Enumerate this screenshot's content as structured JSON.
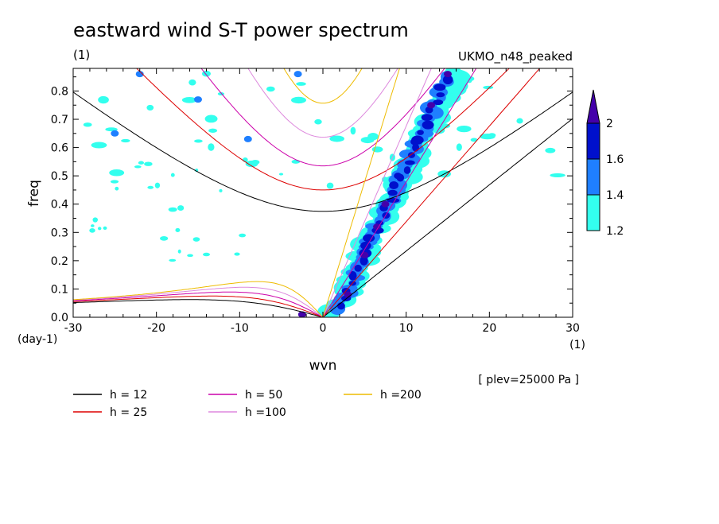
{
  "chart_data": {
    "type": "contour",
    "title": "eastward wind S-T power spectrum",
    "top_left_unit": "(1)",
    "dataset": "UKMO_n48_peaked",
    "xlabel": "wvn",
    "x_unit": "(1)",
    "ylabel": "freq",
    "y_unit": "(day-1)",
    "xlim": [
      -30,
      30
    ],
    "ylim": [
      0,
      0.88
    ],
    "xticks": [
      -30,
      -20,
      -10,
      0,
      10,
      20,
      30
    ],
    "yticks": [
      0.0,
      0.1,
      0.2,
      0.3,
      0.4,
      0.5,
      0.6,
      0.7,
      0.8
    ],
    "ytick_labels": [
      "0.0",
      "0.1",
      "0.2",
      "0.3",
      "0.4",
      "0.5",
      "0.6",
      "0.7",
      "0.8"
    ],
    "annotation": "[ plev=25000 Pa ]",
    "colorbar": {
      "levels": [
        "1.2",
        "1.4",
        "1.6",
        "2"
      ],
      "colors": [
        "#33ffee",
        "#1f7fff",
        "#0010cc",
        "#4400aa"
      ],
      "extend": "max"
    },
    "dispersion_curves": [
      {
        "label": "h = 12",
        "h": 12,
        "color": "#000000"
      },
      {
        "label": "h = 25",
        "h": 25,
        "color": "#dd0000"
      },
      {
        "label": "h = 50",
        "h": 50,
        "color": "#cc00aa"
      },
      {
        "label": "h =100",
        "h": 100,
        "color": "#dd88dd"
      },
      {
        "label": "h =200",
        "h": 200,
        "color": "#eebb00"
      }
    ],
    "spectral_peaks": [
      {
        "x": 3.0,
        "y": 0.08,
        "level": 4
      },
      {
        "x": 5.0,
        "y": 0.22,
        "level": 4
      },
      {
        "x": 6.5,
        "y": 0.32,
        "level": 4
      },
      {
        "x": 7.5,
        "y": 0.4,
        "level": 4
      },
      {
        "x": 9.0,
        "y": 0.5,
        "level": 3
      },
      {
        "x": 11.0,
        "y": 0.62,
        "level": 3
      },
      {
        "x": 13.0,
        "y": 0.75,
        "level": 4
      },
      {
        "x": 15.0,
        "y": 0.86,
        "level": 4
      },
      {
        "x": -2.5,
        "y": 0.01,
        "level": 4
      },
      {
        "x": -25.0,
        "y": 0.65,
        "level": 2
      },
      {
        "x": -15.0,
        "y": 0.77,
        "level": 2
      },
      {
        "x": -9.0,
        "y": 0.63,
        "level": 2
      },
      {
        "x": -22.0,
        "y": 0.86,
        "level": 2
      },
      {
        "x": -3.0,
        "y": 0.86,
        "level": 2
      }
    ]
  }
}
